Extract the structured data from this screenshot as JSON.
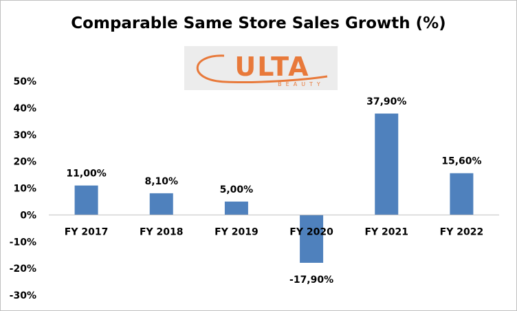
{
  "logo": {
    "text": "ULTA",
    "subtext": "BEAUTY",
    "color": "#e8793a"
  },
  "chart_data": {
    "type": "bar",
    "title": "Comparable Same Store Sales Growth (%)",
    "categories": [
      "FY 2017",
      "FY 2018",
      "FY 2019",
      "FY 2020",
      "FY 2021",
      "FY 2022"
    ],
    "values": [
      11.0,
      8.1,
      5.0,
      -17.9,
      37.9,
      15.6
    ],
    "data_labels": [
      "11,00%",
      "8,10%",
      "5,00%",
      "-17,90%",
      "37,90%",
      "15,60%"
    ],
    "y_ticks": [
      50,
      40,
      30,
      20,
      10,
      0,
      -10,
      -20,
      -30
    ],
    "y_tick_labels": [
      "50%",
      "40%",
      "30%",
      "20%",
      "10%",
      "0%",
      "-10%",
      "-20%",
      "-30%"
    ],
    "ylim": [
      -30,
      50
    ],
    "xlabel": "",
    "ylabel": "",
    "grid": false,
    "legend": "none",
    "bar_color": "#4f81bd",
    "axis_color": "#bfbfbf"
  }
}
